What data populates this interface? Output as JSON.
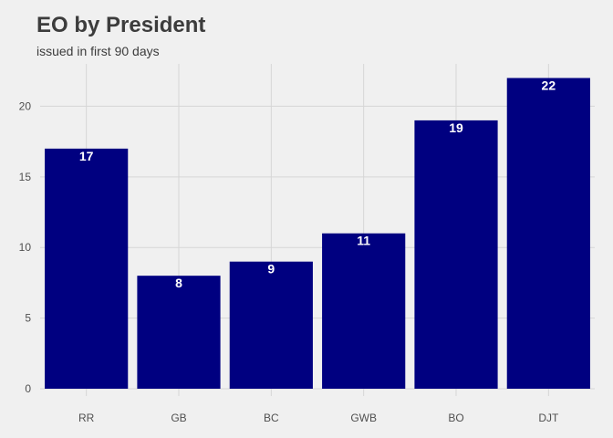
{
  "chart_data": {
    "type": "bar",
    "title": "EO by President",
    "subtitle": "issued in first 90 days",
    "xlabel": "",
    "ylabel": "",
    "categories": [
      "RR",
      "GB",
      "BC",
      "GWB",
      "BO",
      "DJT"
    ],
    "values": [
      17,
      8,
      9,
      11,
      19,
      22
    ],
    "data_labels": [
      "17",
      "8",
      "9",
      "11",
      "19",
      "22"
    ],
    "ylim": [
      0,
      23
    ],
    "yticks": [
      0,
      5,
      10,
      15,
      20
    ],
    "grid": true,
    "legend": "none",
    "colors": {
      "bar": "#000080",
      "background": "#f0f0f0",
      "grid": "#d6d6d6",
      "text": "#3c3c3c"
    }
  }
}
